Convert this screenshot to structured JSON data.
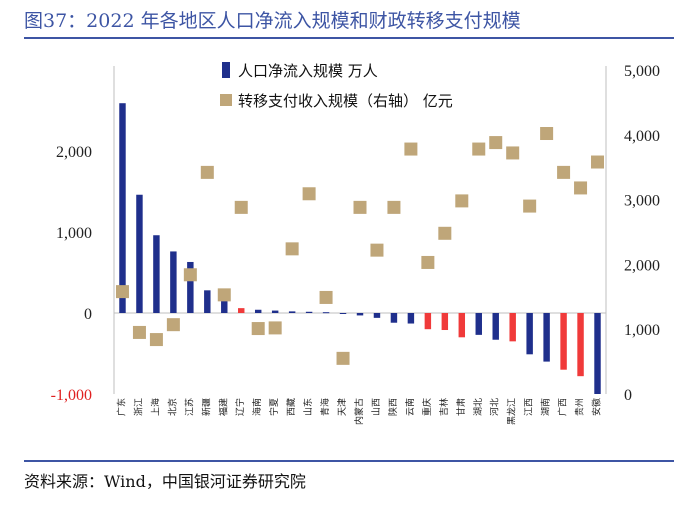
{
  "title": "图37：2022 年各地区人口净流入规模和财政转移支付规模",
  "source": "资料来源：Wind，中国银河证券研究院",
  "colors": {
    "bar_main": "#1f2f8c",
    "bar_highlight": "#f03a3a",
    "marker": "#bfa679",
    "rule": "#3d55a4",
    "negative_tick": "#e02020"
  },
  "chart_data": {
    "type": "bar+scatter",
    "title": "2022 年各地区人口净流入规模和财政转移支付规模",
    "categories": [
      "广东",
      "浙江",
      "上海",
      "北京",
      "江苏",
      "新疆",
      "福建",
      "辽宁",
      "海南",
      "宁夏",
      "西藏",
      "山东",
      "青海",
      "天津",
      "内蒙古",
      "山西",
      "陕西",
      "云南",
      "重庆",
      "吉林",
      "甘肃",
      "湖北",
      "河北",
      "黑龙江",
      "江西",
      "湖南",
      "广西",
      "贵州",
      "安徽"
    ],
    "series": [
      {
        "name": "人口净流入规模 万人",
        "type": "bar",
        "axis": "left",
        "values": [
          2590,
          1460,
          960,
          760,
          630,
          280,
          210,
          60,
          40,
          30,
          20,
          15,
          10,
          -10,
          -30,
          -60,
          -120,
          -130,
          -200,
          -210,
          -300,
          -270,
          -330,
          -350,
          -510,
          -600,
          -700,
          -780,
          -1000
        ],
        "highlight": [
          false,
          false,
          false,
          false,
          false,
          false,
          false,
          true,
          false,
          false,
          false,
          false,
          false,
          false,
          false,
          false,
          false,
          false,
          true,
          true,
          true,
          false,
          false,
          true,
          false,
          false,
          true,
          true,
          false
        ]
      },
      {
        "name": "转移支付收入规模（右轴） 亿元",
        "type": "scatter",
        "axis": "right",
        "values": [
          1580,
          950,
          840,
          1070,
          1840,
          3420,
          1530,
          2880,
          1010,
          1020,
          2240,
          3090,
          1490,
          550,
          2880,
          2220,
          2880,
          3780,
          2030,
          2480,
          2980,
          3780,
          3880,
          3720,
          2900,
          4020,
          3420,
          3180,
          3580
        ]
      }
    ],
    "y_left": {
      "min": -1000,
      "max": 3000,
      "ticks": [
        {
          "v": -1000,
          "label": "-1,000"
        },
        {
          "v": 0,
          "label": "0"
        },
        {
          "v": 1000,
          "label": "1,000"
        },
        {
          "v": 2000,
          "label": "2,000"
        }
      ]
    },
    "y_right": {
      "min": 0,
      "max": 5000,
      "ticks": [
        {
          "v": 0,
          "label": "0"
        },
        {
          "v": 1000,
          "label": "1,000"
        },
        {
          "v": 2000,
          "label": "2,000"
        },
        {
          "v": 3000,
          "label": "3,000"
        },
        {
          "v": 4000,
          "label": "4,000"
        },
        {
          "v": 5000,
          "label": "5,000"
        }
      ]
    },
    "legend": {
      "position": "top-center",
      "items": [
        "人口净流入规模 万人",
        "转移支付收入规模（右轴） 亿元"
      ]
    }
  }
}
